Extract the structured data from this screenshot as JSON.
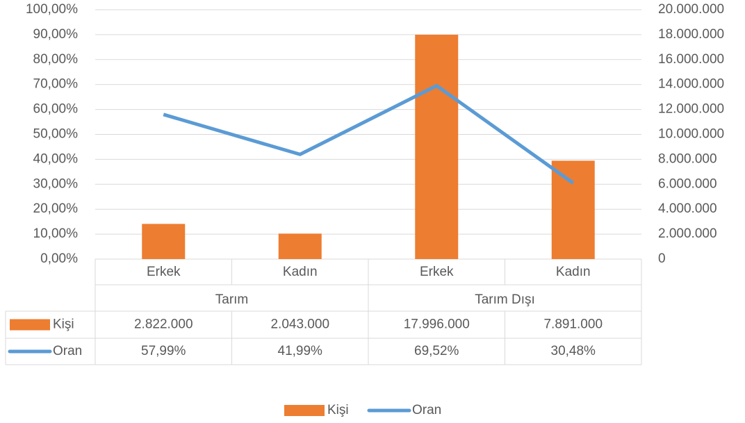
{
  "chart_data": {
    "type": "bar_line_combo",
    "categories": [
      "Erkek",
      "Kadın",
      "Erkek",
      "Kadın"
    ],
    "groups": [
      "Tarım",
      "Tarım Dışı"
    ],
    "series": [
      {
        "name": "Kişi",
        "type": "bar",
        "axis": "y2",
        "color": "#ED7D31",
        "values": [
          2822000,
          2043000,
          17996000,
          7891000
        ],
        "value_labels": [
          "2.822.000",
          "2.043.000",
          "17.996.000",
          "7.891.000"
        ]
      },
      {
        "name": "Oran",
        "type": "line",
        "axis": "y",
        "color": "#5B9BD5",
        "values": [
          57.99,
          41.99,
          69.52,
          30.48
        ],
        "value_labels": [
          "57,99%",
          "41,99%",
          "69,52%",
          "30,48%"
        ]
      }
    ],
    "ylim": [
      0,
      100
    ],
    "yticks": [
      {
        "value": 0,
        "label": "0,00%"
      },
      {
        "value": 10,
        "label": "10,00%"
      },
      {
        "value": 20,
        "label": "20,00%"
      },
      {
        "value": 30,
        "label": "30,00%"
      },
      {
        "value": 40,
        "label": "40,00%"
      },
      {
        "value": 50,
        "label": "50,00%"
      },
      {
        "value": 60,
        "label": "60,00%"
      },
      {
        "value": 70,
        "label": "70,00%"
      },
      {
        "value": 80,
        "label": "80,00%"
      },
      {
        "value": 90,
        "label": "90,00%"
      },
      {
        "value": 100,
        "label": "100,00%"
      }
    ],
    "y2lim": [
      0,
      20000000
    ],
    "y2ticks": [
      0,
      {
        "value": 2000000,
        "label": "2.000.000"
      },
      {
        "value": 4000000,
        "label": "4.000.000"
      },
      {
        "value": 6000000,
        "label": "6.000.000"
      },
      {
        "value": 8000000,
        "label": "8.000.000"
      },
      {
        "value": 10000000,
        "label": "10.000.000"
      },
      {
        "value": 12000000,
        "label": "12.000.000"
      },
      {
        "value": 14000000,
        "label": "14.000.000"
      },
      {
        "value": 16000000,
        "label": "16.000.000"
      },
      {
        "value": 18000000,
        "label": "18.000.000"
      },
      {
        "value": 20000000,
        "label": "20.000.000"
      }
    ],
    "grid": true,
    "data_table": true,
    "legend": "bottom"
  }
}
